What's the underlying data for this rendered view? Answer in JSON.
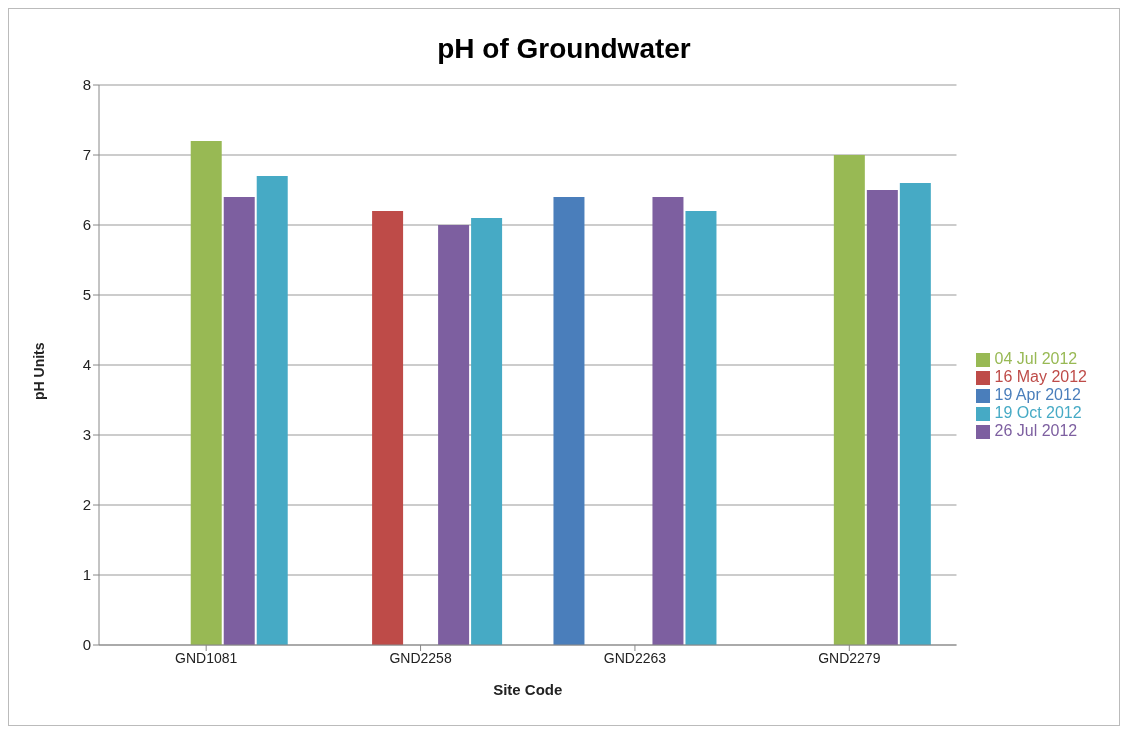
{
  "chart_data": {
    "type": "bar",
    "title": "pH of Groundwater",
    "xlabel": "Site Code",
    "ylabel": "pH Units",
    "categories": [
      "GND1081",
      "GND2258",
      "GND2263",
      "GND2279"
    ],
    "series": [
      {
        "name": "19 Apr 2012",
        "color": "#4a7ebb",
        "values": [
          null,
          null,
          6.4,
          null
        ]
      },
      {
        "name": "16 May 2012",
        "color": "#be4b48",
        "values": [
          null,
          6.2,
          null,
          null
        ]
      },
      {
        "name": "04 Jul 2012",
        "color": "#98b954",
        "values": [
          7.2,
          null,
          null,
          7.0
        ]
      },
      {
        "name": "26 Jul 2012",
        "color": "#7d5fa0",
        "values": [
          6.4,
          6.0,
          6.4,
          6.5
        ]
      },
      {
        "name": "19 Oct 2012",
        "color": "#46aac5",
        "values": [
          6.7,
          6.1,
          6.2,
          6.6
        ]
      }
    ],
    "ylim": [
      0,
      8
    ],
    "yticks": [
      0,
      1,
      2,
      3,
      4,
      5,
      6,
      7,
      8
    ],
    "grid": "y",
    "legend": "right"
  }
}
